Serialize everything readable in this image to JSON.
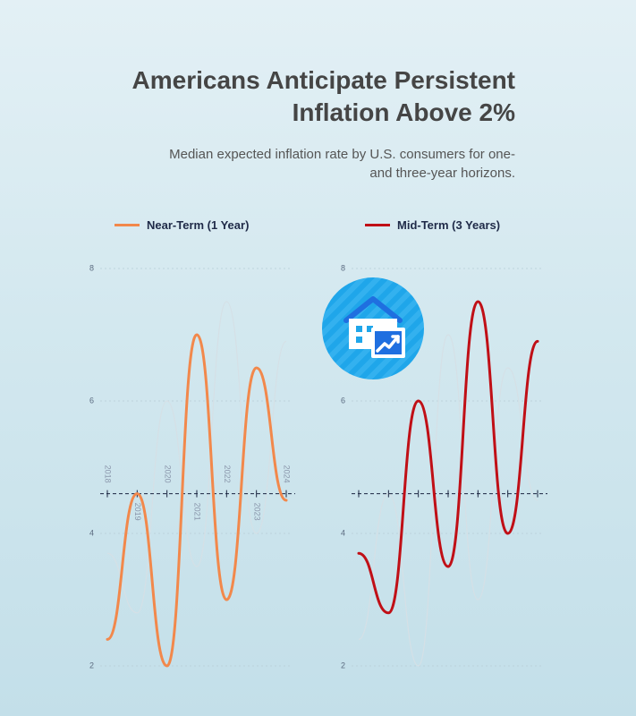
{
  "header": {
    "title_line1": "Americans Anticipate Persistent",
    "title_line2": "Inflation Above 2%",
    "subtitle_line1": "Median expected inflation rate by U.S. consumers for one-",
    "subtitle_line2": "and three-year horizons."
  },
  "badge": {
    "icon": "house-inflation-icon",
    "colors": [
      "#1fa6ea",
      "#ffffff",
      "#1f6fe0"
    ]
  },
  "chart_data": [
    {
      "type": "line",
      "series": [
        {
          "name": "Near-Term (1 Year)",
          "color": "#f2884b",
          "x": [
            2018,
            2019,
            2020,
            2021,
            2022,
            2023,
            2024
          ],
          "values": [
            2.4,
            4.6,
            2.0,
            7.0,
            3.0,
            6.5,
            4.5
          ]
        }
      ],
      "ghost_series": {
        "color": "#d5e0e6",
        "values": [
          3.7,
          2.8,
          6.0,
          3.5,
          7.5,
          4.0,
          6.9
        ]
      },
      "x_tick_labels": [
        "2018",
        "2019",
        "2020",
        "2021",
        "2022",
        "2023",
        "2024"
      ],
      "ylim": [
        2,
        8
      ],
      "y_ticks": [
        "2",
        "4",
        "6",
        "8"
      ],
      "reference_line": 4.6,
      "grid": true,
      "legend_position": "top-left"
    },
    {
      "type": "line",
      "series": [
        {
          "name": "Mid-Term (3 Years)",
          "color": "#c00f16",
          "x": [
            2018,
            2019,
            2020,
            2021,
            2022,
            2023,
            2024
          ],
          "values": [
            3.7,
            2.8,
            6.0,
            3.5,
            7.5,
            4.0,
            6.9
          ]
        }
      ],
      "ghost_series": {
        "color": "#d5e0e6",
        "values": [
          2.4,
          4.6,
          2.0,
          7.0,
          3.0,
          6.5,
          4.5
        ]
      },
      "ylim": [
        2,
        8
      ],
      "y_ticks": [
        "2",
        "4",
        "6",
        "8"
      ],
      "reference_line": 4.6,
      "grid": true,
      "legend_position": "top-left"
    }
  ]
}
